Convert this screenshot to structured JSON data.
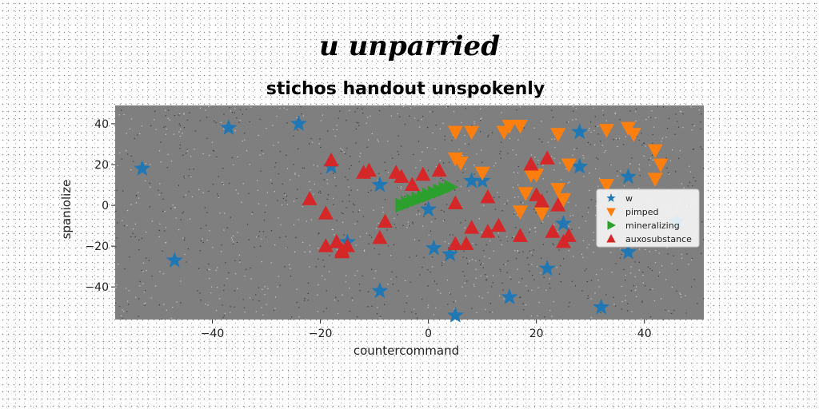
{
  "headline": "u unparried",
  "chart_data": {
    "type": "scatter",
    "title": "stichos handout unspokenly",
    "xlabel": "countercommand",
    "ylabel": "spaniolize",
    "xlim": [
      -58,
      51
    ],
    "ylim": [
      -56,
      49
    ],
    "xticks": [
      -40,
      -20,
      0,
      20,
      40
    ],
    "yticks": [
      -40,
      -20,
      0,
      20,
      40
    ],
    "grid": false,
    "legend_position": "right",
    "series": [
      {
        "name": "w",
        "marker": "star",
        "color": "#1f77b4",
        "x": [
          -53,
          -47,
          -37,
          -24,
          -18,
          -15,
          -9,
          -9,
          0,
          1,
          4,
          5,
          8,
          10,
          15,
          22,
          25,
          28,
          28,
          32,
          37,
          37,
          46
        ],
        "y": [
          18,
          -27,
          38,
          40,
          19,
          -18,
          -42,
          10,
          -2,
          -21,
          -24,
          -54,
          12,
          12,
          -45,
          -31,
          -9,
          36,
          19,
          -50,
          14,
          -23,
          -8
        ]
      },
      {
        "name": "pimped",
        "marker": "triangle_down",
        "color": "#ff7f0e",
        "x": [
          5,
          5,
          6,
          8,
          10,
          14,
          15,
          17,
          17,
          18,
          19,
          20,
          21,
          24,
          24,
          25,
          26,
          33,
          33,
          37,
          38,
          42,
          42,
          43
        ],
        "y": [
          36,
          23,
          21,
          36,
          16,
          36,
          39,
          39,
          -3,
          6,
          15,
          15,
          -4,
          35,
          8,
          3,
          20,
          37,
          10,
          38,
          35,
          27,
          13,
          20
        ]
      },
      {
        "name": "mineralizing",
        "marker": "triangle_right",
        "color": "#2ca02c",
        "x": [
          -5,
          -4,
          -3,
          -2,
          -1,
          0,
          1,
          2,
          3,
          4
        ],
        "y": [
          0,
          1,
          2,
          3,
          4,
          5,
          6,
          7,
          8,
          9
        ]
      },
      {
        "name": "auxosubstance",
        "marker": "triangle_up",
        "color": "#d62728",
        "x": [
          -22,
          -19,
          -19,
          -18,
          -17,
          -16,
          -16,
          -15,
          -12,
          -11,
          -9,
          -8,
          -6,
          -5,
          -3,
          -1,
          2,
          5,
          5,
          7,
          8,
          11,
          11,
          13,
          17,
          19,
          20,
          21,
          22,
          23,
          24,
          25,
          26
        ],
        "y": [
          3,
          -4,
          -20,
          22,
          -18,
          -22,
          -23,
          -20,
          16,
          17,
          -16,
          -8,
          16,
          14,
          10,
          15,
          17,
          1,
          -19,
          -19,
          -11,
          -13,
          4,
          -10,
          -15,
          20,
          5,
          2,
          23,
          -13,
          0,
          -18,
          -15
        ]
      }
    ]
  }
}
